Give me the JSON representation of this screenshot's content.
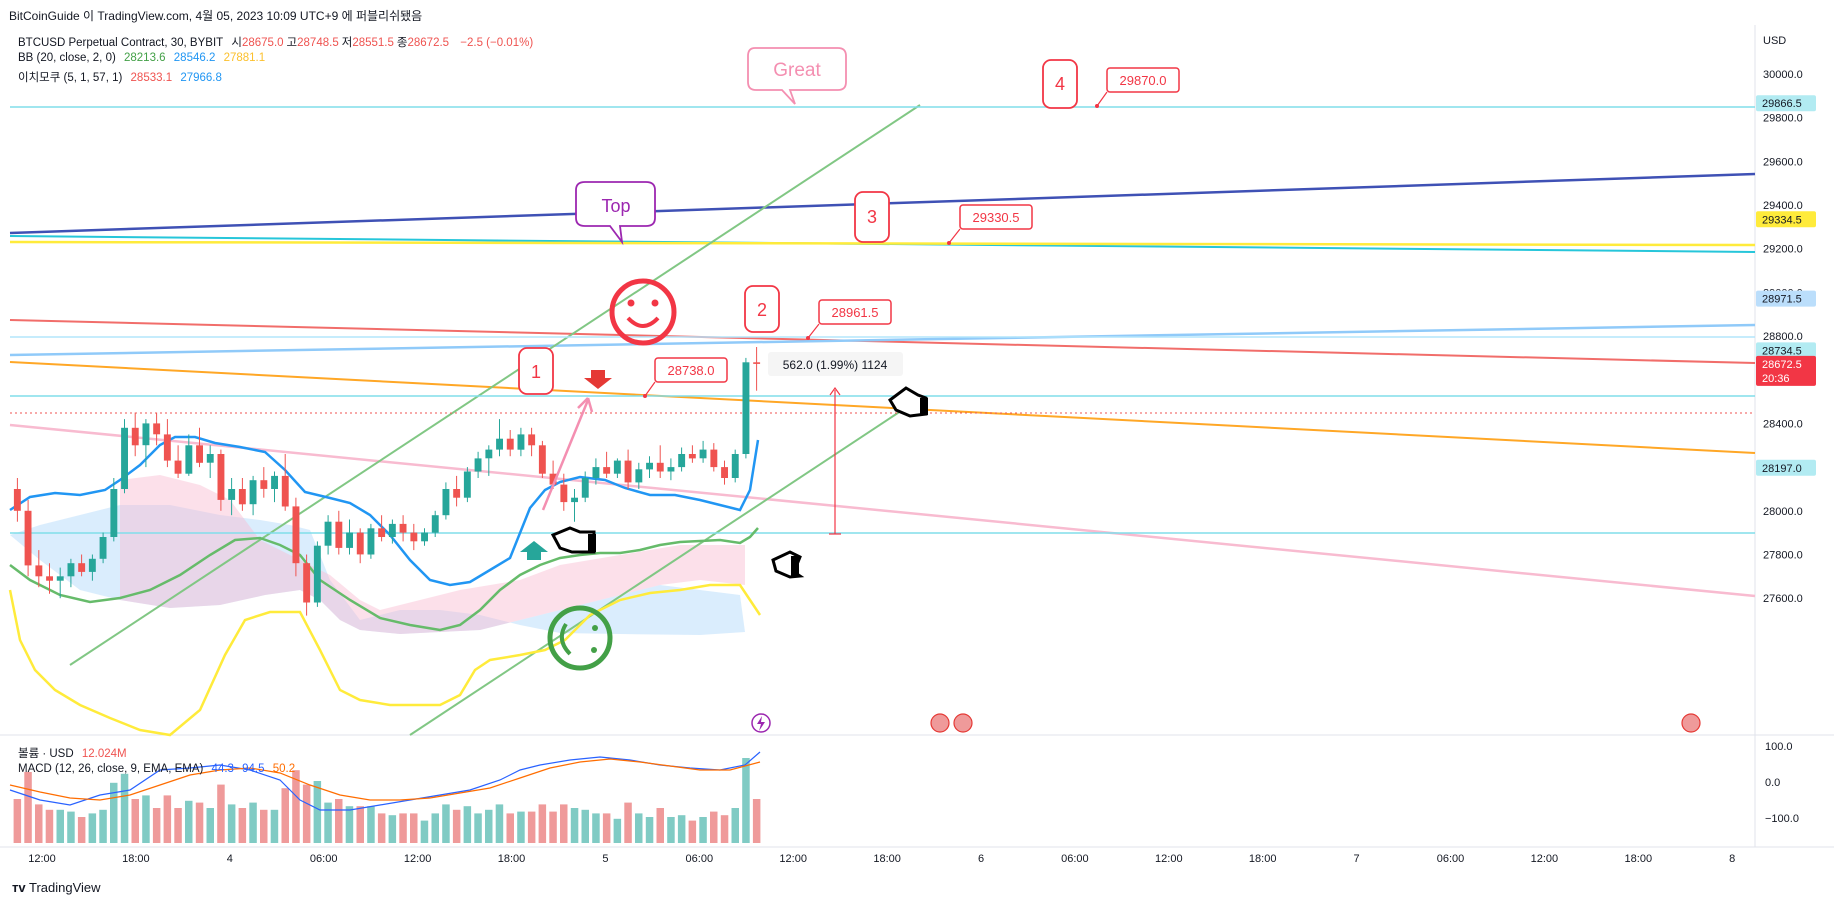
{
  "header": {
    "author_line": "BitCoinGuide 이 TradingView.com, 4월 05, 2023 10:09 UTC+9 에 퍼블리쉬됐음"
  },
  "legend": {
    "symbol": "BTCUSD Perpetual Contract, 30, BYBIT",
    "ohlc": [
      {
        "label": "시",
        "value": "28675.0"
      },
      {
        "label": "고",
        "value": "28748.5"
      },
      {
        "label": "저",
        "value": "28551.5"
      },
      {
        "label": "종",
        "value": "28672.5"
      }
    ],
    "change": "−2.5 (−0.01%)",
    "bb": {
      "label": "BB (20, close, 2, 0)",
      "basis": "28213.6",
      "upper": "28546.2",
      "lower": "27881.1"
    },
    "ichimoku": {
      "label": "이치모쿠 (5, 1, 57, 1)",
      "v1": "28533.1",
      "v2": "27966.8"
    },
    "volume": {
      "label": "볼륨 · USD",
      "value": "12.024M"
    },
    "macd": {
      "label": "MACD (12, 26, close, 9, EMA, EMA)",
      "v1": "44.3",
      "v2": "94.5",
      "v3": "50.2"
    }
  },
  "footer": {
    "brand": "TradingView"
  },
  "colors": {
    "up": "#26a69a",
    "down": "#ef5350",
    "bb": "#2196f3",
    "bb_basis": "#4caf50",
    "bb_lower": "#ffeb3b",
    "annot": "#f23645"
  },
  "chart_data": {
    "type": "candlestick",
    "currency": "USD",
    "price_axis": {
      "ticks": [
        {
          "price": 30000,
          "label": "30000.0"
        },
        {
          "price": 29800,
          "label": "29800.0"
        },
        {
          "price": 29600,
          "label": "29600.0"
        },
        {
          "price": 29400,
          "label": "29400.0"
        },
        {
          "price": 29200,
          "label": "29200.0"
        },
        {
          "price": 29000,
          "label": "29000.0"
        },
        {
          "price": 28800,
          "label": "28800.0"
        },
        {
          "price": 28400,
          "label": "28400.0"
        },
        {
          "price": 28000,
          "label": "28000.0"
        },
        {
          "price": 27800,
          "label": "27800.0"
        },
        {
          "price": 27600,
          "label": "27600.0"
        }
      ],
      "badges": [
        {
          "price": 29866.5,
          "label": "29866.5",
          "style": "cyan"
        },
        {
          "price": 29334.5,
          "label": "29334.5",
          "style": "yellow"
        },
        {
          "price": 28971.5,
          "label": "28971.5",
          "style": "lightblue"
        },
        {
          "price": 28734.5,
          "label": "28734.5",
          "style": "cyan"
        },
        {
          "price": 28672.5,
          "label": "28672.5",
          "sub": "20:36",
          "style": "red"
        },
        {
          "price": 28197.0,
          "label": "28197.0",
          "style": "cyan"
        }
      ]
    },
    "time_axis": [
      "12:00",
      "18:00",
      "4",
      "06:00",
      "12:00",
      "18:00",
      "5",
      "06:00",
      "12:00",
      "18:00",
      "6",
      "06:00",
      "12:00",
      "18:00",
      "7",
      "06:00",
      "12:00",
      "18:00",
      "8"
    ],
    "macd_axis": [
      "100.0",
      "0.0",
      "−100.0"
    ],
    "candles_ohlc": [
      [
        28100,
        28150,
        27950,
        28000
      ],
      [
        28000,
        28050,
        27700,
        27750
      ],
      [
        27750,
        27820,
        27650,
        27700
      ],
      [
        27700,
        27760,
        27620,
        27680
      ],
      [
        27680,
        27740,
        27600,
        27700
      ],
      [
        27700,
        27780,
        27650,
        27760
      ],
      [
        27760,
        27800,
        27700,
        27720
      ],
      [
        27720,
        27800,
        27680,
        27780
      ],
      [
        27780,
        27900,
        27760,
        27880
      ],
      [
        27880,
        28150,
        27860,
        28100
      ],
      [
        28100,
        28420,
        28080,
        28380
      ],
      [
        28380,
        28450,
        28250,
        28300
      ],
      [
        28300,
        28420,
        28200,
        28400
      ],
      [
        28400,
        28450,
        28300,
        28350
      ],
      [
        28350,
        28420,
        28200,
        28230
      ],
      [
        28230,
        28300,
        28150,
        28170
      ],
      [
        28170,
        28350,
        28160,
        28300
      ],
      [
        28300,
        28380,
        28200,
        28220
      ],
      [
        28220,
        28300,
        28150,
        28260
      ],
      [
        28260,
        28280,
        28000,
        28050
      ],
      [
        28050,
        28150,
        27980,
        28100
      ],
      [
        28100,
        28150,
        28000,
        28030
      ],
      [
        28030,
        28160,
        27980,
        28140
      ],
      [
        28140,
        28200,
        28060,
        28100
      ],
      [
        28100,
        28180,
        28040,
        28160
      ],
      [
        28160,
        28260,
        28000,
        28020
      ],
      [
        28020,
        28060,
        27700,
        27760
      ],
      [
        27760,
        27800,
        27520,
        27580
      ],
      [
        27580,
        27860,
        27560,
        27840
      ],
      [
        27840,
        27980,
        27800,
        27950
      ],
      [
        27950,
        28000,
        27800,
        27830
      ],
      [
        27830,
        27960,
        27800,
        27900
      ],
      [
        27900,
        27920,
        27760,
        27800
      ],
      [
        27800,
        27940,
        27780,
        27920
      ],
      [
        27920,
        27980,
        27860,
        27880
      ],
      [
        27880,
        27960,
        27850,
        27940
      ],
      [
        27940,
        27980,
        27860,
        27900
      ],
      [
        27900,
        27940,
        27820,
        27860
      ],
      [
        27860,
        27920,
        27840,
        27900
      ],
      [
        27900,
        28000,
        27880,
        27980
      ],
      [
        27980,
        28130,
        27960,
        28100
      ],
      [
        28100,
        28160,
        28020,
        28060
      ],
      [
        28060,
        28200,
        28040,
        28180
      ],
      [
        28180,
        28270,
        28150,
        28240
      ],
      [
        28240,
        28300,
        28160,
        28280
      ],
      [
        28280,
        28420,
        28250,
        28330
      ],
      [
        28330,
        28370,
        28250,
        28280
      ],
      [
        28280,
        28380,
        28250,
        28350
      ],
      [
        28350,
        28380,
        28250,
        28300
      ],
      [
        28300,
        28320,
        28150,
        28170
      ],
      [
        28170,
        28230,
        28100,
        28120
      ],
      [
        28120,
        28170,
        28000,
        28040
      ],
      [
        28040,
        28100,
        27950,
        28060
      ],
      [
        28060,
        28180,
        28040,
        28150
      ],
      [
        28150,
        28240,
        28120,
        28200
      ],
      [
        28200,
        28270,
        28150,
        28170
      ],
      [
        28170,
        28240,
        28150,
        28230
      ],
      [
        28230,
        28280,
        28100,
        28130
      ],
      [
        28130,
        28220,
        28100,
        28190
      ],
      [
        28190,
        28250,
        28150,
        28220
      ],
      [
        28220,
        28300,
        28150,
        28180
      ],
      [
        28180,
        28240,
        28140,
        28200
      ],
      [
        28200,
        28290,
        28180,
        28260
      ],
      [
        28260,
        28300,
        28220,
        28240
      ],
      [
        28240,
        28320,
        28220,
        28280
      ],
      [
        28280,
        28310,
        28180,
        28200
      ],
      [
        28200,
        28230,
        28120,
        28150
      ],
      [
        28150,
        28280,
        28130,
        28260
      ],
      [
        28260,
        28700,
        28240,
        28680
      ],
      [
        28680,
        28750,
        28550,
        28672.5
      ]
    ]
  },
  "annotations": {
    "bubble_great": "Great",
    "bubble_top": "Top",
    "num_1": "1",
    "num_2": "2",
    "num_3": "3",
    "num_4": "4",
    "price_labels": [
      "28738.0",
      "28961.5",
      "29330.5",
      "29870.0"
    ],
    "measure": "562.0 (1.99%) 1124"
  }
}
